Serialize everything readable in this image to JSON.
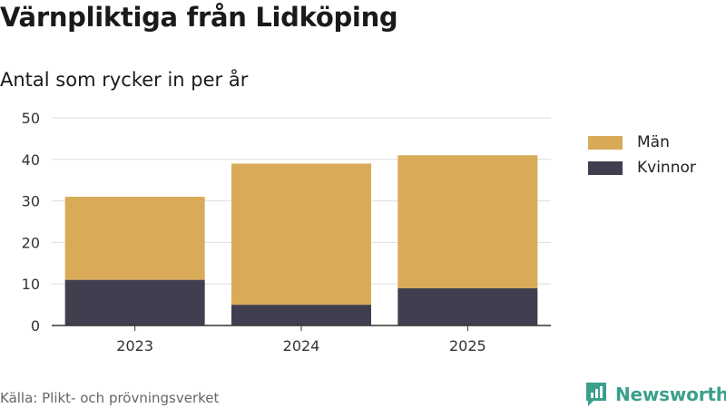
{
  "title": "Värnpliktiga från Lidköping",
  "subtitle": "Antal som rycker in per år",
  "source": "Källa: Plikt- och prövningsverket",
  "brand": "Newsworthy",
  "colors": {
    "man": "#d9ab58",
    "kvinnor": "#413f4f",
    "brand": "#3aa08d",
    "grid": "#dddddd",
    "axis": "#333333"
  },
  "legend": [
    {
      "label": "Män",
      "color": "#d9ab58"
    },
    {
      "label": "Kvinnor",
      "color": "#413f4f"
    }
  ],
  "chart_data": {
    "type": "bar",
    "stacked": true,
    "title": "Värnpliktiga från Lidköping",
    "subtitle": "Antal som rycker in per år",
    "categories": [
      "2023",
      "2024",
      "2025"
    ],
    "series": [
      {
        "name": "Kvinnor",
        "values": [
          11,
          5,
          9
        ]
      },
      {
        "name": "Män",
        "values": [
          20,
          34,
          32
        ]
      }
    ],
    "ylim": [
      0,
      50
    ],
    "yticks": [
      0,
      10,
      20,
      30,
      40,
      50
    ],
    "grid": true,
    "legend_position": "right",
    "xlabel": "",
    "ylabel": ""
  }
}
